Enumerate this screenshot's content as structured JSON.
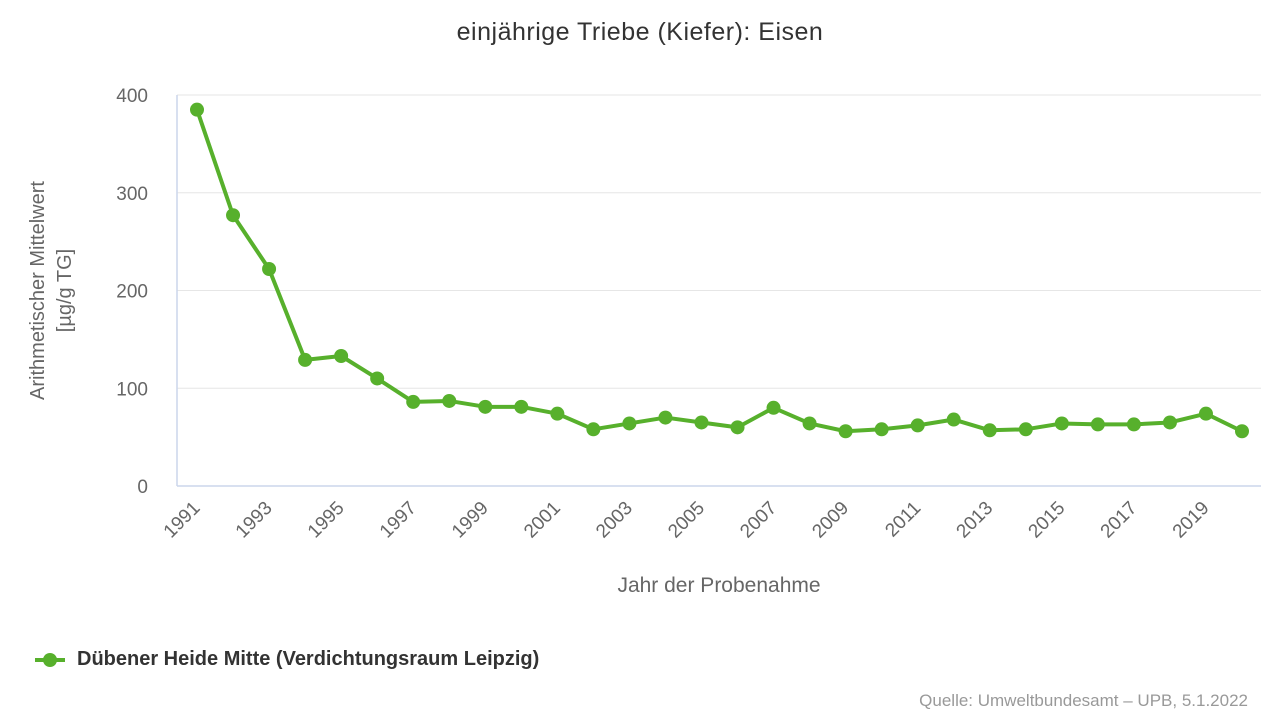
{
  "title": "einjährige Triebe (Kiefer): Eisen",
  "credits": "Quelle: Umweltbundesamt – UPB, 5.1.2022",
  "colors": {
    "series_green": "#57b02c",
    "gridline": "#e6e6e6",
    "axis_line": "#ccd6eb",
    "tick_text": "#666666",
    "axis_title_text": "#666666",
    "title_text": "#333333",
    "legend_text": "#333333",
    "credits_text": "#999999"
  },
  "chart_data": {
    "type": "line",
    "title": "einjährige Triebe (Kiefer): Eisen",
    "xlabel": "Jahr der Probenahme",
    "ylabel_line1": "Arithmetischer Mittelwert",
    "ylabel_line2": "[µg/g TG]",
    "ylim": [
      0,
      400
    ],
    "yticks": [
      0,
      100,
      200,
      300,
      400
    ],
    "grid": "horizontal",
    "legend_position": "bottom-left",
    "x": [
      1991,
      1992,
      1993,
      1994,
      1995,
      1996,
      1997,
      1998,
      1999,
      2000,
      2001,
      2002,
      2003,
      2004,
      2005,
      2006,
      2007,
      2008,
      2009,
      2010,
      2011,
      2012,
      2013,
      2014,
      2015,
      2016,
      2017,
      2018,
      2019,
      2020
    ],
    "xtick_labels": [
      "1991",
      "1993",
      "1995",
      "1997",
      "1999",
      "2001",
      "2003",
      "2005",
      "2007",
      "2009",
      "2011",
      "2013",
      "2015",
      "2017",
      "2019"
    ],
    "series": [
      {
        "name": "Dübener Heide Mitte (Verdichtungsraum Leipzig)",
        "color": "#57b02c",
        "values": [
          385,
          277,
          222,
          129,
          133,
          110,
          86,
          87,
          81,
          81,
          74,
          58,
          64,
          70,
          65,
          60,
          80,
          64,
          56,
          58,
          62,
          68,
          57,
          58,
          64,
          63,
          63,
          65,
          74,
          56
        ]
      }
    ]
  }
}
